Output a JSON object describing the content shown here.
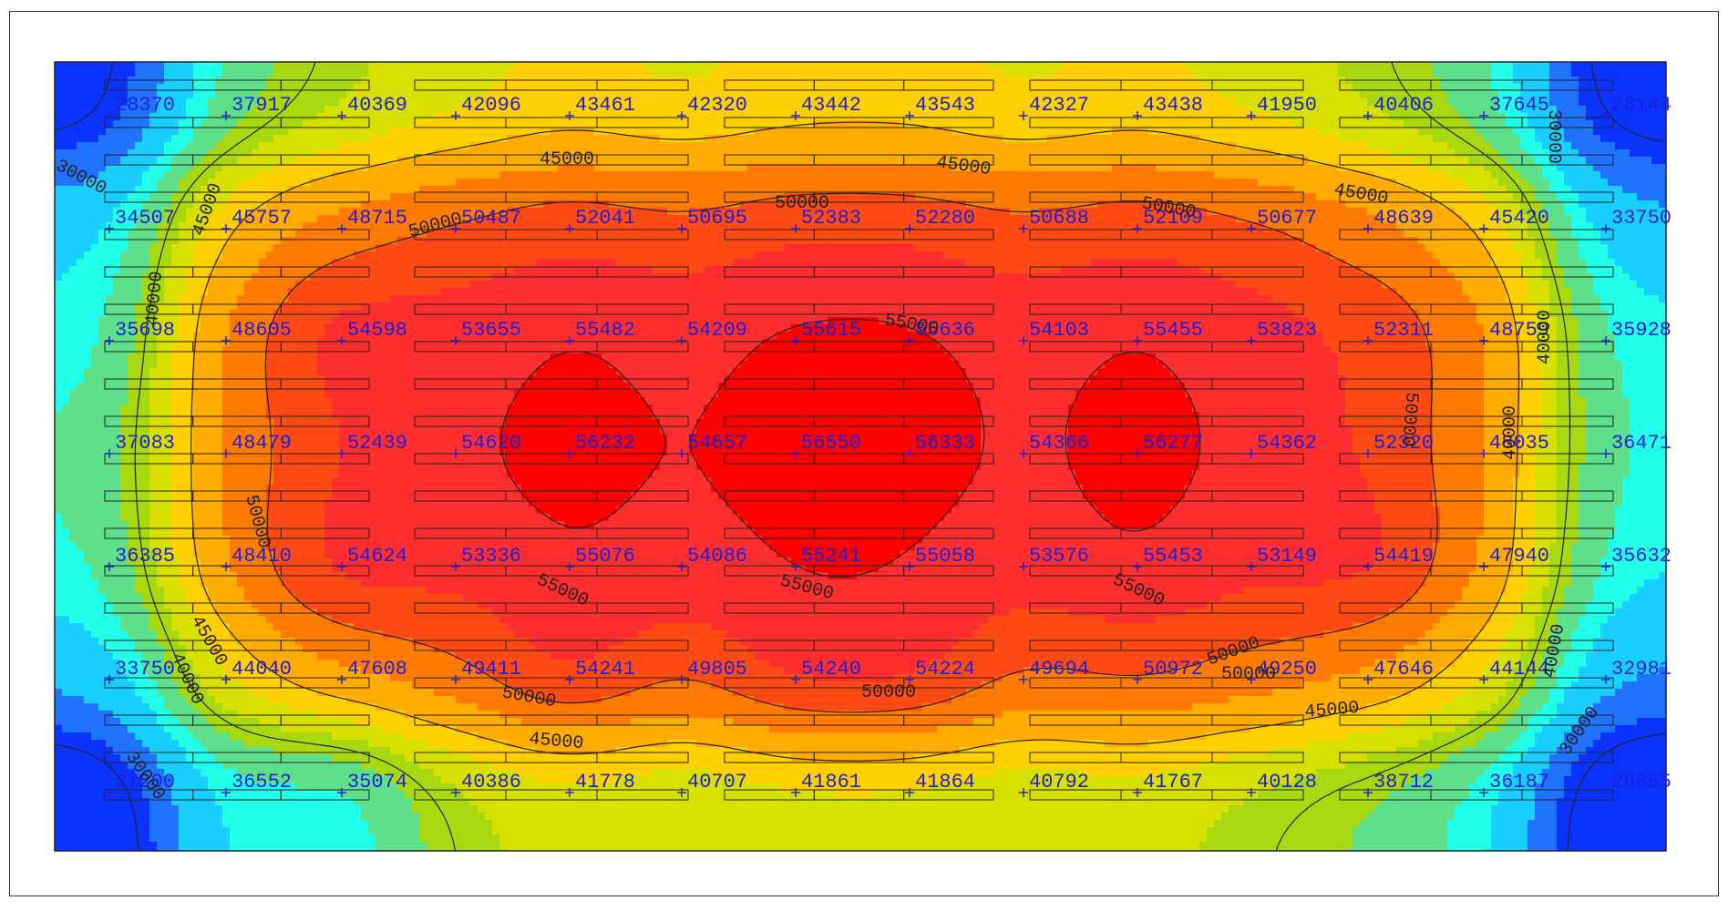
{
  "chart_data": {
    "type": "heatmap",
    "title": "",
    "xlabel": "",
    "ylabel": "",
    "grid_size": [
      14,
      7
    ],
    "colors": {
      "bands": [
        "#0a33ff",
        "#1f73ff",
        "#18cfff",
        "#22ffe9",
        "#5edf8a",
        "#a8d810",
        "#d8e000",
        "#ffd000",
        "#ffab00",
        "#ff7a00",
        "#ff4a14",
        "#ff2e2e",
        "#ff0000"
      ],
      "value_label": "#1f1fd8",
      "contour": "#222222",
      "background": "#ffffff"
    },
    "band_edges": [
      28000,
      31000,
      33000,
      35500,
      37000,
      39000,
      41000,
      43000,
      45000,
      47500,
      50000,
      52500,
      55000
    ],
    "contour_levels": [
      30000,
      40000,
      45000,
      50000,
      55000
    ],
    "contour_labels": [
      {
        "text": "30000"
      },
      {
        "text": "30000"
      },
      {
        "text": "30000"
      },
      {
        "text": "30000"
      },
      {
        "text": "40000"
      },
      {
        "text": "40000"
      },
      {
        "text": "40000"
      },
      {
        "text": "40000"
      },
      {
        "text": "40000"
      },
      {
        "text": "45000"
      },
      {
        "text": "45000"
      },
      {
        "text": "45000"
      },
      {
        "text": "45000"
      },
      {
        "text": "45000"
      },
      {
        "text": "45000"
      },
      {
        "text": "45000"
      },
      {
        "text": "50000"
      },
      {
        "text": "50000"
      },
      {
        "text": "50000"
      },
      {
        "text": "50000"
      },
      {
        "text": "50000"
      },
      {
        "text": "50000"
      },
      {
        "text": "50000"
      },
      {
        "text": "50000"
      },
      {
        "text": "50000"
      },
      {
        "text": "55000"
      },
      {
        "text": "55000"
      },
      {
        "text": "55000"
      },
      {
        "text": "55000"
      }
    ],
    "values": [
      [
        "28370",
        "37917",
        "40369",
        "42096",
        "43461",
        "42320",
        "43442",
        "43543",
        "42327",
        "43438",
        "41950",
        "40406",
        "37645",
        "28144"
      ],
      [
        "34507",
        "45757",
        "48715",
        "50487",
        "52041",
        "50695",
        "52383",
        "52280",
        "50688",
        "52109",
        "50677",
        "48639",
        "45420",
        "33750"
      ],
      [
        "35698",
        "48605",
        "54598",
        "53655",
        "55482",
        "54209",
        "55615",
        "55636",
        "54103",
        "55455",
        "53823",
        "52311",
        "48759",
        "35928"
      ],
      [
        "37083",
        "48479",
        "52439",
        "54620",
        "56232",
        "54657",
        "56550",
        "56333",
        "54366",
        "56277",
        "54362",
        "52320",
        "48035",
        "36471"
      ],
      [
        "36385",
        "48410",
        "54624",
        "53336",
        "55076",
        "54086",
        "55241",
        "55058",
        "53576",
        "55453",
        "53149",
        "54419",
        "47940",
        "35632"
      ],
      [
        "33750",
        "44040",
        "47608",
        "49411",
        "54241",
        "49805",
        "54240",
        "54224",
        "49694",
        "50972",
        "49250",
        "47646",
        "44144",
        "32981"
      ],
      [
        "27200",
        "36552",
        "35074",
        "40386",
        "41778",
        "40707",
        "41861",
        "41864",
        "40792",
        "41767",
        "40128",
        "38712",
        "36187",
        "26855"
      ]
    ]
  }
}
